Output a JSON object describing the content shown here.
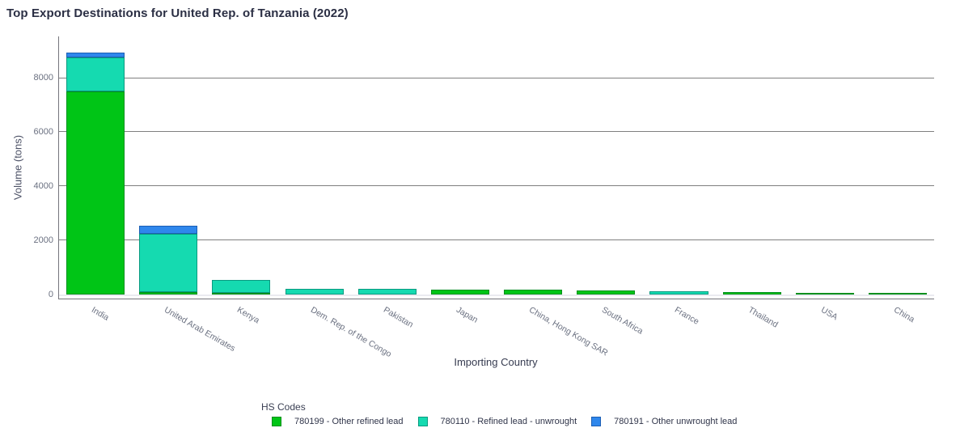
{
  "title": "Top Export Destinations for United Rep. of Tanzania (2022)",
  "chart_data": {
    "type": "bar",
    "stacked": true,
    "title": "Top Export Destinations for United Rep. of Tanzania (2022)",
    "xlabel": "Importing Country",
    "ylabel": "Volume (tons)",
    "ylim": [
      0,
      9540
    ],
    "yticks": [
      0,
      2000,
      4000,
      6000,
      8000
    ],
    "grid": true,
    "legend_title": "HS Codes",
    "legend_position": "bottom-center",
    "categories": [
      "India",
      "United Arab Emirates",
      "Kenya",
      "Dem. Rep. of the Congo",
      "Pakistan",
      "Japan",
      "China, Hong Kong SAR",
      "South Africa",
      "France",
      "Thailand",
      "USA",
      "China"
    ],
    "series": [
      {
        "name": "780199 - Other refined lead",
        "color": "#00c516",
        "border_color": "#008f1d",
        "values": [
          7520,
          80,
          60,
          0,
          0,
          165,
          175,
          150,
          0,
          105,
          75,
          65
        ]
      },
      {
        "name": "780110 - Refined lead - unwrought",
        "color": "#15dab0",
        "border_color": "#0a9a80",
        "values": [
          1250,
          2150,
          490,
          205,
          210,
          0,
          0,
          0,
          130,
          0,
          0,
          0
        ]
      },
      {
        "name": "780191 - Other unwrought lead",
        "color": "#2f87ec",
        "border_color": "#1d5fb4",
        "values": [
          170,
          300,
          0,
          0,
          0,
          0,
          0,
          0,
          0,
          0,
          0,
          0
        ]
      }
    ]
  },
  "colors": {
    "title_text": "#2b2f44",
    "axis_title_text": "#3b4054",
    "tick_text": "#6a7080",
    "gridline": "#7f7f7f",
    "axis_frame": "#75757c",
    "zeroline": "#ebebf0"
  }
}
